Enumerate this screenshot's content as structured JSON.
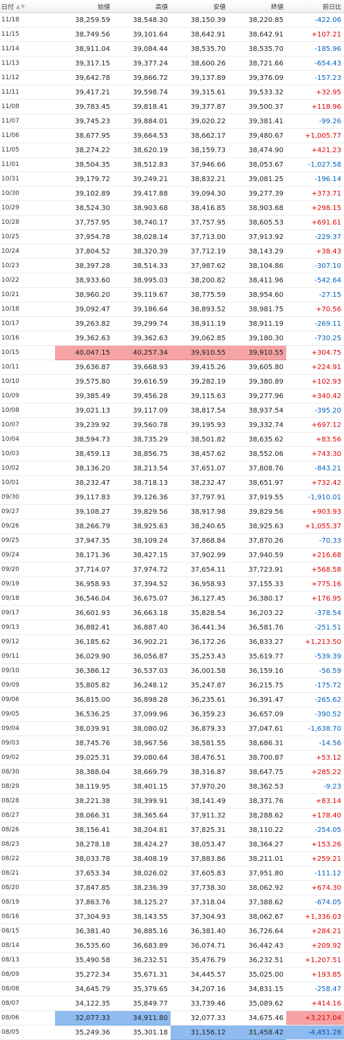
{
  "headers": {
    "date": "日付",
    "open": "始値",
    "high": "高値",
    "low": "安値",
    "close": "終値",
    "change": "前日比",
    "sort_icon": "sort-up-down-icon"
  },
  "colors": {
    "up": "#e00000",
    "down": "#0060c0",
    "highlight_red": "#f5a3a3",
    "highlight_blue": "#8ebbf0"
  },
  "rows": [
    {
      "date": "11/18",
      "open": "38,259.59",
      "high": "38,548.30",
      "low": "38,150.39",
      "close": "38,220.85",
      "change": "-422.06",
      "dir": "down"
    },
    {
      "date": "11/15",
      "open": "38,749.56",
      "high": "39,101.64",
      "low": "38,642.91",
      "close": "38,642.91",
      "change": "+107.21",
      "dir": "up"
    },
    {
      "date": "11/14",
      "open": "38,911.04",
      "high": "39,084.44",
      "low": "38,535.70",
      "close": "38,535.70",
      "change": "-185.96",
      "dir": "down"
    },
    {
      "date": "11/13",
      "open": "39,317.15",
      "high": "39,377.24",
      "low": "38,600.26",
      "close": "38,721.66",
      "change": "-654.43",
      "dir": "down"
    },
    {
      "date": "11/12",
      "open": "39,642.78",
      "high": "39,866.72",
      "low": "39,137.89",
      "close": "39,376.09",
      "change": "-157.23",
      "dir": "down"
    },
    {
      "date": "11/11",
      "open": "39,417.21",
      "high": "39,598.74",
      "low": "39,315.61",
      "close": "39,533.32",
      "change": "+32.95",
      "dir": "up"
    },
    {
      "date": "11/08",
      "open": "39,783.45",
      "high": "39,818.41",
      "low": "39,377.87",
      "close": "39,500.37",
      "change": "+118.96",
      "dir": "up"
    },
    {
      "date": "11/07",
      "open": "39,745.23",
      "high": "39,884.01",
      "low": "39,020.22",
      "close": "39,381.41",
      "change": "-99.26",
      "dir": "down"
    },
    {
      "date": "11/06",
      "open": "38,677.95",
      "high": "39,664.53",
      "low": "38,662.17",
      "close": "39,480.67",
      "change": "+1,005.77",
      "dir": "up"
    },
    {
      "date": "11/05",
      "open": "38,274.22",
      "high": "38,620.19",
      "low": "38,159.73",
      "close": "38,474.90",
      "change": "+421.23",
      "dir": "up"
    },
    {
      "date": "11/01",
      "open": "38,504.35",
      "high": "38,512.83",
      "low": "37,946.66",
      "close": "38,053.67",
      "change": "-1,027.58",
      "dir": "down"
    },
    {
      "date": "10/31",
      "open": "39,179.72",
      "high": "39,249.21",
      "low": "38,832.21",
      "close": "39,081.25",
      "change": "-196.14",
      "dir": "down"
    },
    {
      "date": "10/30",
      "open": "39,102.89",
      "high": "39,417.88",
      "low": "39,094.30",
      "close": "39,277.39",
      "change": "+373.71",
      "dir": "up"
    },
    {
      "date": "10/29",
      "open": "38,524.30",
      "high": "38,903.68",
      "low": "38,416.85",
      "close": "38,903.68",
      "change": "+298.15",
      "dir": "up"
    },
    {
      "date": "10/28",
      "open": "37,757.95",
      "high": "38,740.17",
      "low": "37,757.95",
      "close": "38,605.53",
      "change": "+691.61",
      "dir": "up"
    },
    {
      "date": "10/25",
      "open": "37,954.78",
      "high": "38,028.14",
      "low": "37,713.00",
      "close": "37,913.92",
      "change": "-229.37",
      "dir": "down"
    },
    {
      "date": "10/24",
      "open": "37,804.52",
      "high": "38,320.39",
      "low": "37,712.19",
      "close": "38,143.29",
      "change": "+38.43",
      "dir": "up"
    },
    {
      "date": "10/23",
      "open": "38,397.28",
      "high": "38,514.33",
      "low": "37,987.62",
      "close": "38,104.86",
      "change": "-307.10",
      "dir": "down"
    },
    {
      "date": "10/22",
      "open": "38,933.60",
      "high": "38,995.03",
      "low": "38,200.82",
      "close": "38,411.96",
      "change": "-542.64",
      "dir": "down"
    },
    {
      "date": "10/21",
      "open": "38,960.20",
      "high": "39,119.67",
      "low": "38,775.59",
      "close": "38,954.60",
      "change": "-27.15",
      "dir": "down"
    },
    {
      "date": "10/18",
      "open": "39,092.47",
      "high": "39,186.64",
      "low": "38,893.52",
      "close": "38,981.75",
      "change": "+70.56",
      "dir": "up"
    },
    {
      "date": "10/17",
      "open": "39,263.82",
      "high": "39,299.74",
      "low": "38,911.19",
      "close": "38,911.19",
      "change": "-269.11",
      "dir": "down"
    },
    {
      "date": "10/16",
      "open": "39,362.63",
      "high": "39,362.63",
      "low": "39,062.85",
      "close": "39,180.30",
      "change": "-730.25",
      "dir": "down"
    },
    {
      "date": "10/15",
      "open": "40,047.15",
      "high": "40,257.34",
      "low": "39,910.55",
      "close": "39,910.55",
      "change": "+304.75",
      "dir": "up",
      "hl": [
        "open",
        "high",
        "low",
        "close"
      ],
      "hl_color": "red"
    },
    {
      "date": "10/11",
      "open": "39,636.87",
      "high": "39,668.93",
      "low": "39,415.26",
      "close": "39,605.80",
      "change": "+224.91",
      "dir": "up"
    },
    {
      "date": "10/10",
      "open": "39,575.80",
      "high": "39,616.59",
      "low": "39,282.19",
      "close": "39,380.89",
      "change": "+102.93",
      "dir": "up"
    },
    {
      "date": "10/09",
      "open": "39,385.49",
      "high": "39,456.28",
      "low": "39,115.63",
      "close": "39,277.96",
      "change": "+340.42",
      "dir": "up"
    },
    {
      "date": "10/08",
      "open": "39,021.13",
      "high": "39,117.09",
      "low": "38,817.54",
      "close": "38,937.54",
      "change": "-395.20",
      "dir": "down"
    },
    {
      "date": "10/07",
      "open": "39,239.92",
      "high": "39,560.78",
      "low": "39,195.93",
      "close": "39,332.74",
      "change": "+697.12",
      "dir": "up"
    },
    {
      "date": "10/04",
      "open": "38,594.73",
      "high": "38,735.29",
      "low": "38,501.82",
      "close": "38,635.62",
      "change": "+83.56",
      "dir": "up"
    },
    {
      "date": "10/03",
      "open": "38,459.13",
      "high": "38,856.75",
      "low": "38,457.62",
      "close": "38,552.06",
      "change": "+743.30",
      "dir": "up"
    },
    {
      "date": "10/02",
      "open": "38,136.20",
      "high": "38,213.54",
      "low": "37,651.07",
      "close": "37,808.76",
      "change": "-843.21",
      "dir": "down"
    },
    {
      "date": "10/01",
      "open": "38,232.47",
      "high": "38,718.13",
      "low": "38,232.47",
      "close": "38,651.97",
      "change": "+732.42",
      "dir": "up"
    },
    {
      "date": "09/30",
      "open": "39,117.83",
      "high": "39,126.36",
      "low": "37,797.91",
      "close": "37,919.55",
      "change": "-1,910.01",
      "dir": "down"
    },
    {
      "date": "09/27",
      "open": "39,108.27",
      "high": "39,829.56",
      "low": "38,917.98",
      "close": "39,829.56",
      "change": "+903.93",
      "dir": "up"
    },
    {
      "date": "09/26",
      "open": "38,266.79",
      "high": "38,925.63",
      "low": "38,240.65",
      "close": "38,925.63",
      "change": "+1,055.37",
      "dir": "up"
    },
    {
      "date": "09/25",
      "open": "37,947.35",
      "high": "38,109.24",
      "low": "37,868.84",
      "close": "37,870.26",
      "change": "-70.33",
      "dir": "down"
    },
    {
      "date": "09/24",
      "open": "38,171.36",
      "high": "38,427.15",
      "low": "37,902.99",
      "close": "37,940.59",
      "change": "+216.68",
      "dir": "up"
    },
    {
      "date": "09/20",
      "open": "37,714.07",
      "high": "37,974.72",
      "low": "37,654.11",
      "close": "37,723.91",
      "change": "+568.58",
      "dir": "up"
    },
    {
      "date": "09/19",
      "open": "36,958.93",
      "high": "37,394.52",
      "low": "36,958.93",
      "close": "37,155.33",
      "change": "+775.16",
      "dir": "up"
    },
    {
      "date": "09/18",
      "open": "36,546.04",
      "high": "36,675.07",
      "low": "36,127.45",
      "close": "36,380.17",
      "change": "+176.95",
      "dir": "up"
    },
    {
      "date": "09/17",
      "open": "36,601.93",
      "high": "36,663.18",
      "low": "35,828.54",
      "close": "36,203.22",
      "change": "-378.54",
      "dir": "down"
    },
    {
      "date": "09/13",
      "open": "36,882.41",
      "high": "36,887.40",
      "low": "36,441.34",
      "close": "36,581.76",
      "change": "-251.51",
      "dir": "down"
    },
    {
      "date": "09/12",
      "open": "36,185.62",
      "high": "36,902.21",
      "low": "36,172.26",
      "close": "36,833.27",
      "change": "+1,213.50",
      "dir": "up"
    },
    {
      "date": "09/11",
      "open": "36,029.90",
      "high": "36,056.87",
      "low": "35,253.43",
      "close": "35,619.77",
      "change": "-539.39",
      "dir": "down"
    },
    {
      "date": "09/10",
      "open": "36,386.12",
      "high": "36,537.03",
      "low": "36,001.58",
      "close": "36,159.16",
      "change": "-56.59",
      "dir": "down"
    },
    {
      "date": "09/09",
      "open": "35,805.82",
      "high": "36,248.12",
      "low": "35,247.87",
      "close": "36,215.75",
      "change": "-175.72",
      "dir": "down"
    },
    {
      "date": "09/06",
      "open": "36,815.00",
      "high": "36,898.28",
      "low": "36,235.61",
      "close": "36,391.47",
      "change": "-265.62",
      "dir": "down"
    },
    {
      "date": "09/05",
      "open": "36,536.25",
      "high": "37,099.96",
      "low": "36,359.23",
      "close": "36,657.09",
      "change": "-390.52",
      "dir": "down"
    },
    {
      "date": "09/04",
      "open": "38,039.91",
      "high": "38,080.02",
      "low": "36,879.33",
      "close": "37,047.61",
      "change": "-1,638.70",
      "dir": "down"
    },
    {
      "date": "09/03",
      "open": "38,745.76",
      "high": "38,967.56",
      "low": "38,581.55",
      "close": "38,686.31",
      "change": "-14.56",
      "dir": "down"
    },
    {
      "date": "09/02",
      "open": "39,025.31",
      "high": "39,080.64",
      "low": "38,476.51",
      "close": "38,700.87",
      "change": "+53.12",
      "dir": "up"
    },
    {
      "date": "08/30",
      "open": "38,388.04",
      "high": "38,669.79",
      "low": "38,316.87",
      "close": "38,647.75",
      "change": "+285.22",
      "dir": "up"
    },
    {
      "date": "08/29",
      "open": "38,119.95",
      "high": "38,401.15",
      "low": "37,970.20",
      "close": "38,362.53",
      "change": "-9.23",
      "dir": "down"
    },
    {
      "date": "08/28",
      "open": "38,221.38",
      "high": "38,399.91",
      "low": "38,141.49",
      "close": "38,371.76",
      "change": "+83.14",
      "dir": "up"
    },
    {
      "date": "08/27",
      "open": "38,066.31",
      "high": "38,365.64",
      "low": "37,911.32",
      "close": "38,288.62",
      "change": "+178.40",
      "dir": "up"
    },
    {
      "date": "08/26",
      "open": "38,156.41",
      "high": "38,204.81",
      "low": "37,825.31",
      "close": "38,110.22",
      "change": "-254.05",
      "dir": "down"
    },
    {
      "date": "08/23",
      "open": "38,278.18",
      "high": "38,424.27",
      "low": "38,053.47",
      "close": "38,364.27",
      "change": "+153.26",
      "dir": "up"
    },
    {
      "date": "08/22",
      "open": "38,033.78",
      "high": "38,408.19",
      "low": "37,883.86",
      "close": "38,211.01",
      "change": "+259.21",
      "dir": "up"
    },
    {
      "date": "08/21",
      "open": "37,653.34",
      "high": "38,026.02",
      "low": "37,605.83",
      "close": "37,951.80",
      "change": "-111.12",
      "dir": "down"
    },
    {
      "date": "08/20",
      "open": "37,847.85",
      "high": "38,236.39",
      "low": "37,738.30",
      "close": "38,062.92",
      "change": "+674.30",
      "dir": "up"
    },
    {
      "date": "08/19",
      "open": "37,863.76",
      "high": "38,125.27",
      "low": "37,318.04",
      "close": "37,388.62",
      "change": "-674.05",
      "dir": "down"
    },
    {
      "date": "08/16",
      "open": "37,304.93",
      "high": "38,143.55",
      "low": "37,304.93",
      "close": "38,062.67",
      "change": "+1,336.03",
      "dir": "up"
    },
    {
      "date": "08/15",
      "open": "36,381.40",
      "high": "36,885.16",
      "low": "36,381.40",
      "close": "36,726.64",
      "change": "+284.21",
      "dir": "up"
    },
    {
      "date": "08/14",
      "open": "36,535.60",
      "high": "36,683.89",
      "low": "36,074.71",
      "close": "36,442.43",
      "change": "+209.92",
      "dir": "up"
    },
    {
      "date": "08/13",
      "open": "35,490.58",
      "high": "36,232.51",
      "low": "35,476.79",
      "close": "36,232.51",
      "change": "+1,207.51",
      "dir": "up"
    },
    {
      "date": "08/09",
      "open": "35,272.34",
      "high": "35,671.31",
      "low": "34,445.57",
      "close": "35,025.00",
      "change": "+193.85",
      "dir": "up"
    },
    {
      "date": "08/08",
      "open": "34,645.79",
      "high": "35,379.65",
      "low": "34,207.16",
      "close": "34,831.15",
      "change": "-258.47",
      "dir": "down"
    },
    {
      "date": "08/07",
      "open": "34,122.35",
      "high": "35,849.77",
      "low": "33,739.46",
      "close": "35,089.62",
      "change": "+414.16",
      "dir": "up"
    },
    {
      "date": "08/06",
      "open": "32,077.33",
      "high": "34,911.80",
      "low": "32,077.33",
      "close": "34,675.46",
      "change": "+3,217.04",
      "dir": "up",
      "hl": [
        "open",
        "high",
        "change"
      ],
      "hl_color": "blue",
      "change_hl": "red"
    },
    {
      "date": "08/05",
      "open": "35,249.36",
      "high": "35,301.18",
      "low": "31,156.12",
      "close": "31,458.42",
      "change": "-4,451.28",
      "dir": "down",
      "hl": [
        "low",
        "close",
        "change"
      ],
      "hl_color": "blue",
      "change_hl": "blue"
    }
  ]
}
